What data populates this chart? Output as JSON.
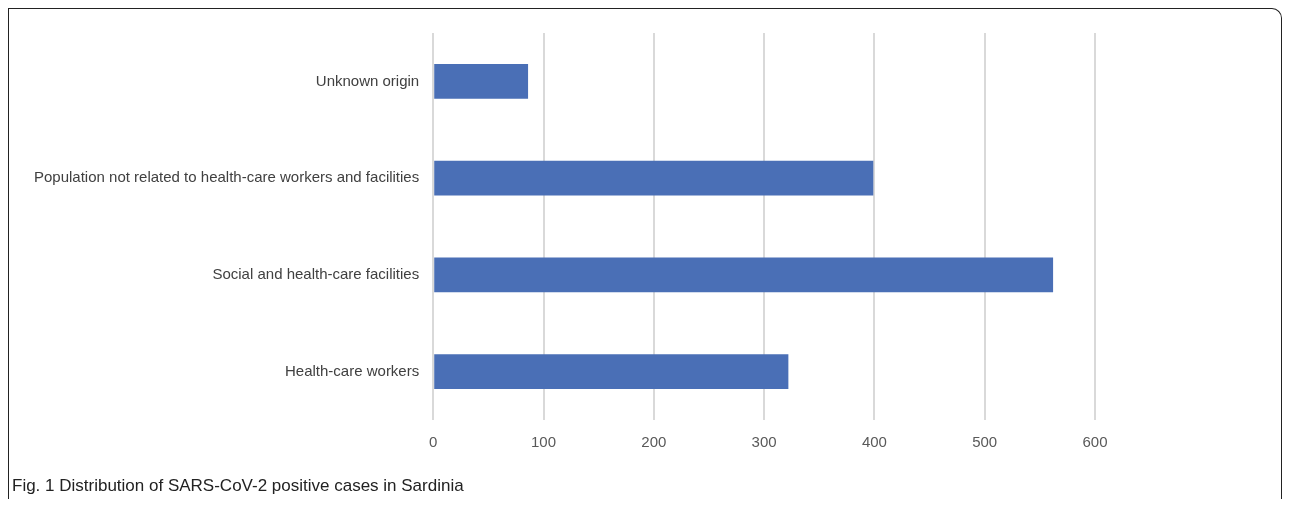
{
  "chart_data": {
    "type": "bar",
    "orientation": "horizontal",
    "categories": [
      "Unknown origin",
      "Population not related to health-care workers and facilities",
      "Social and health-care facilities",
      "Health-care workers"
    ],
    "values": [
      86,
      399,
      562,
      322
    ],
    "color": "#4a6fb6",
    "xlim": [
      0,
      600
    ],
    "xticks": [
      0,
      100,
      200,
      300,
      400,
      500,
      600
    ],
    "grid": "x",
    "annotations": [
      "Fig. 1 Distribution of SARS-CoV-2 positive cases in Sardinia"
    ]
  }
}
